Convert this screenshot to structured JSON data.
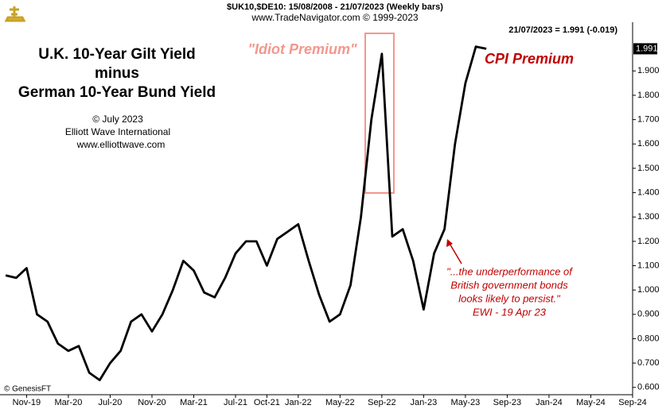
{
  "chart_data": {
    "type": "line",
    "header": "$UK10,$DE10:  15/08/2008 - 21/07/2023  (Weekly bars)",
    "source": "www.TradeNavigator.com © 1999-2023",
    "last_note": "21/07/2023 = 1.991 (-0.019)",
    "copyright": "© GenesisFT",
    "title_lines": [
      "U.K. 10-Year Gilt Yield",
      "minus",
      "German 10-Year Bund Yield"
    ],
    "credit_lines": [
      "© July 2023",
      "Elliott Wave International",
      "www.elliottwave.com"
    ],
    "annotations": [
      "\"Idiot Premium\"",
      "CPI Premium"
    ],
    "quote_lines": [
      "\"...the underperformance of",
      "British government bonds",
      "looks likely to persist.\"",
      "EWI - 19 Apr 23"
    ],
    "x": [
      "2019-09",
      "2019-10",
      "2019-11",
      "2019-12",
      "2020-01",
      "2020-02",
      "2020-03",
      "2020-04",
      "2020-05",
      "2020-06",
      "2020-07",
      "2020-08",
      "2020-09",
      "2020-10",
      "2020-11",
      "2020-12",
      "2021-01",
      "2021-02",
      "2021-03",
      "2021-04",
      "2021-05",
      "2021-06",
      "2021-07",
      "2021-08",
      "2021-09",
      "2021-10",
      "2021-11",
      "2021-12",
      "2022-01",
      "2022-02",
      "2022-03",
      "2022-04",
      "2022-05",
      "2022-06",
      "2022-07",
      "2022-08",
      "2022-09",
      "2022-10",
      "2022-11",
      "2022-12",
      "2023-01",
      "2023-02",
      "2023-03",
      "2023-04",
      "2023-05",
      "2023-06",
      "2023-07"
    ],
    "values": [
      1.06,
      1.05,
      1.09,
      0.9,
      0.87,
      0.78,
      0.75,
      0.77,
      0.66,
      0.63,
      0.7,
      0.75,
      0.87,
      0.9,
      0.83,
      0.9,
      1.0,
      1.12,
      1.08,
      0.99,
      0.97,
      1.05,
      1.15,
      1.2,
      1.2,
      1.1,
      1.21,
      1.24,
      1.27,
      1.12,
      0.98,
      0.87,
      0.9,
      1.02,
      1.3,
      1.7,
      1.97,
      1.22,
      1.25,
      1.12,
      0.92,
      1.15,
      1.25,
      1.6,
      1.85,
      2.0,
      1.991
    ],
    "color": "#000000",
    "xlim": [
      "2019-08",
      "2024-09"
    ],
    "xticks": [
      {
        "value": "2019-11",
        "label": "Nov-19"
      },
      {
        "value": "2020-03",
        "label": "Mar-20"
      },
      {
        "value": "2020-07",
        "label": "Jul-20"
      },
      {
        "value": "2020-11",
        "label": "Nov-20"
      },
      {
        "value": "2021-03",
        "label": "Mar-21"
      },
      {
        "value": "2021-07",
        "label": "Jul-21"
      },
      {
        "value": "2021-10",
        "label": "Oct-21"
      },
      {
        "value": "2022-01",
        "label": "Jan-22"
      },
      {
        "value": "2022-05",
        "label": "May-22"
      },
      {
        "value": "2022-09",
        "label": "Sep-22"
      },
      {
        "value": "2023-01",
        "label": "Jan-23"
      },
      {
        "value": "2023-05",
        "label": "May-23"
      },
      {
        "value": "2023-09",
        "label": "Sep-23"
      },
      {
        "value": "2024-01",
        "label": "Jan-24"
      },
      {
        "value": "2024-05",
        "label": "May-24"
      },
      {
        "value": "2024-09",
        "label": "Sep-24"
      }
    ],
    "ylim": [
      0.57,
      2.1
    ],
    "yticks": [
      {
        "value": 0.6,
        "label": "0.600"
      },
      {
        "value": 0.7,
        "label": "0.700"
      },
      {
        "value": 0.8,
        "label": "0.800"
      },
      {
        "value": 0.9,
        "label": "0.900"
      },
      {
        "value": 1.0,
        "label": "1.000"
      },
      {
        "value": 1.1,
        "label": "1.100"
      },
      {
        "value": 1.2,
        "label": "1.200"
      },
      {
        "value": 1.3,
        "label": "1.300"
      },
      {
        "value": 1.4,
        "label": "1.400"
      },
      {
        "value": 1.5,
        "label": "1.500"
      },
      {
        "value": 1.6,
        "label": "1.600"
      },
      {
        "value": 1.7,
        "label": "1.700"
      },
      {
        "value": 1.8,
        "label": "1.800"
      },
      {
        "value": 1.9,
        "label": "1.900"
      }
    ]
  }
}
